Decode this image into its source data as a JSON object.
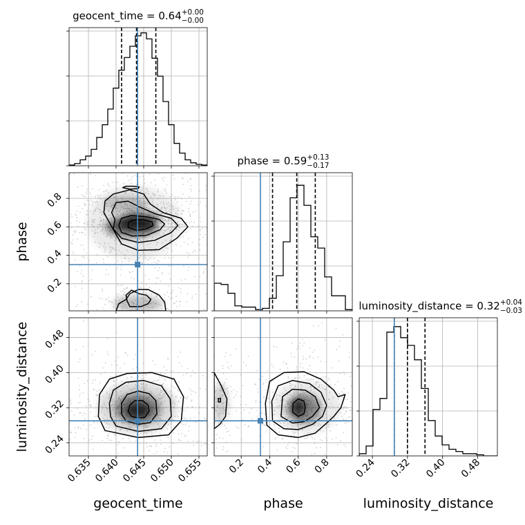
{
  "chart_data": {
    "type": "corner",
    "parameters": [
      "geocent_time",
      "phase",
      "luminosity_distance"
    ],
    "axis_labels": {
      "geocent_time": "geocent_time",
      "phase": "phase",
      "luminosity_distance": "luminosity_distance"
    },
    "titles": [
      {
        "param": "geocent_time",
        "name": "geocent_time",
        "value": "0.64",
        "plus": "+0.00",
        "minus": "−0.00"
      },
      {
        "param": "phase",
        "name": "phase",
        "value": "0.59",
        "plus": "+0.13",
        "minus": "−0.17"
      },
      {
        "param": "luminosity_distance",
        "name": "luminosity_distance",
        "value": "0.32",
        "plus": "+0.04",
        "minus": "−0.03"
      }
    ],
    "ranges": {
      "geocent_time": [
        0.6315,
        0.6565
      ],
      "phase": [
        0.01,
        0.98
      ],
      "luminosity_distance": [
        0.21,
        0.525
      ]
    },
    "ticks": {
      "geocent_time": {
        "values": [
          0.635,
          0.64,
          0.645,
          0.65,
          0.655
        ],
        "labels": [
          "0.635",
          "0.640",
          "0.645",
          "0.650",
          "0.655"
        ]
      },
      "phase": {
        "values": [
          0.2,
          0.4,
          0.6,
          0.8
        ],
        "labels": [
          "0.2",
          "0.4",
          "0.6",
          "0.8"
        ]
      },
      "luminosity_distance": {
        "values": [
          0.24,
          0.32,
          0.4,
          0.48
        ],
        "labels": [
          "0.24",
          "0.32",
          "0.40",
          "0.48"
        ]
      }
    },
    "truths": {
      "geocent_time": 0.6439,
      "phase": 0.335,
      "luminosity_distance": 0.29
    },
    "quantiles": {
      "geocent_time": [
        0.641,
        0.6437,
        0.6472
      ],
      "phase": [
        0.42,
        0.59,
        0.72
      ],
      "luminosity_distance": [
        0.29,
        0.32,
        0.36
      ]
    },
    "histograms": {
      "geocent_time": {
        "edges": [
          0.6315,
          0.6325,
          0.6335,
          0.6345,
          0.6355,
          0.6365,
          0.6375,
          0.6385,
          0.6395,
          0.6405,
          0.6415,
          0.6425,
          0.6435,
          0.6445,
          0.6455,
          0.6465,
          0.6475,
          0.6485,
          0.6495,
          0.6505,
          0.6515,
          0.6525,
          0.6535,
          0.6545,
          0.6555,
          0.6565
        ],
        "counts": [
          1,
          3,
          8,
          13,
          22,
          38,
          55,
          76,
          104,
          128,
          145,
          160,
          174,
          178,
          170,
          144,
          120,
          86,
          55,
          30,
          17,
          8,
          4,
          2,
          1
        ],
        "ymax": 185
      },
      "phase": {
        "edges": [
          0.01,
          0.0585,
          0.107,
          0.1555,
          0.204,
          0.2525,
          0.301,
          0.3495,
          0.398,
          0.4465,
          0.495,
          0.5435,
          0.592,
          0.6405,
          0.689,
          0.7375,
          0.786,
          0.8345,
          0.883,
          0.9315,
          0.98
        ],
        "counts": [
          22,
          21,
          14,
          4,
          3,
          3,
          1,
          2,
          10,
          28,
          55,
          90,
          100,
          84,
          59,
          50,
          27,
          12,
          12,
          1
        ],
        "ymax": 110
      },
      "luminosity_distance": {
        "edges": [
          0.21,
          0.22575,
          0.2415,
          0.25725,
          0.273,
          0.28875,
          0.3045,
          0.32025,
          0.336,
          0.35175,
          0.3675,
          0.38325,
          0.399,
          0.41475,
          0.4305,
          0.44625,
          0.462,
          0.47775,
          0.4935,
          0.50925,
          0.525
        ],
        "counts": [
          2,
          9,
          42,
          52,
          112,
          117,
          107,
          100,
          87,
          61,
          32,
          18,
          10,
          6,
          4,
          2,
          2,
          1,
          0,
          0
        ],
        "ymax": 125
      }
    },
    "hist_ytick_fractions": [
      0.0,
      0.325,
      0.65,
      0.975
    ],
    "density_2d": {
      "phase_vs_geocent_time": [
        {
          "x": 0.6436,
          "y": 0.62,
          "level": 0.95,
          "rx": 0.0035,
          "ry": 0.045
        },
        {
          "x": 0.6428,
          "y": 0.6,
          "level": 0.7,
          "rx": 0.0048,
          "ry": 0.075
        },
        {
          "x": 0.6446,
          "y": 0.66,
          "level": 0.6,
          "rx": 0.0035,
          "ry": 0.05
        },
        {
          "x": 0.6418,
          "y": 0.76,
          "level": 0.3,
          "rx": 0.004,
          "ry": 0.06
        },
        {
          "x": 0.644,
          "y": 0.06,
          "level": 0.35,
          "rx": 0.0045,
          "ry": 0.06
        },
        {
          "x": 0.6433,
          "y": 0.63,
          "level": 0.12,
          "rx": 0.0085,
          "ry": 0.26
        }
      ],
      "luminosity_distance_vs_geocent_time": [
        {
          "x": 0.6439,
          "y": 0.314,
          "level": 1.0,
          "rx": 0.0022,
          "ry": 0.018
        },
        {
          "x": 0.6439,
          "y": 0.318,
          "level": 0.6,
          "rx": 0.0042,
          "ry": 0.035
        },
        {
          "x": 0.6439,
          "y": 0.32,
          "level": 0.2,
          "rx": 0.0072,
          "ry": 0.06
        }
      ],
      "luminosity_distance_vs_phase": [
        {
          "x": 0.6,
          "y": 0.32,
          "level": 0.95,
          "rx": 0.05,
          "ry": 0.018
        },
        {
          "x": 0.64,
          "y": 0.318,
          "level": 0.6,
          "rx": 0.12,
          "ry": 0.035
        },
        {
          "x": 0.05,
          "y": 0.33,
          "level": 0.25,
          "rx": 0.06,
          "ry": 0.045
        },
        {
          "x": 0.66,
          "y": 0.322,
          "level": 0.12,
          "rx": 0.24,
          "ry": 0.06
        }
      ]
    },
    "contours_2d": {
      "phase_vs_geocent_time": [
        [
          [
            0.6422,
            0.595
          ],
          [
            0.6438,
            0.575
          ],
          [
            0.6454,
            0.585
          ],
          [
            0.6467,
            0.61
          ],
          [
            0.6465,
            0.635
          ],
          [
            0.645,
            0.65
          ],
          [
            0.6432,
            0.648
          ],
          [
            0.6422,
            0.63
          ]
        ],
        [
          [
            0.641,
            0.56
          ],
          [
            0.643,
            0.535
          ],
          [
            0.6455,
            0.54
          ],
          [
            0.648,
            0.58
          ],
          [
            0.6488,
            0.62
          ],
          [
            0.6478,
            0.652
          ],
          [
            0.6455,
            0.67
          ],
          [
            0.6428,
            0.68
          ],
          [
            0.641,
            0.66
          ],
          [
            0.6405,
            0.61
          ]
        ],
        [
          [
            0.6395,
            0.585
          ],
          [
            0.641,
            0.52
          ],
          [
            0.644,
            0.49
          ],
          [
            0.647,
            0.505
          ],
          [
            0.65,
            0.56
          ],
          [
            0.6512,
            0.61
          ],
          [
            0.65,
            0.66
          ],
          [
            0.6472,
            0.69
          ],
          [
            0.6442,
            0.74
          ],
          [
            0.6422,
            0.78
          ],
          [
            0.64,
            0.77
          ],
          [
            0.6392,
            0.7
          ],
          [
            0.6398,
            0.65
          ]
        ],
        [
          [
            0.6378,
            0.7
          ],
          [
            0.6398,
            0.56
          ],
          [
            0.641,
            0.48
          ],
          [
            0.644,
            0.435
          ],
          [
            0.6478,
            0.44
          ],
          [
            0.651,
            0.52
          ],
          [
            0.653,
            0.6
          ],
          [
            0.6518,
            0.66
          ],
          [
            0.6485,
            0.7
          ],
          [
            0.6462,
            0.76
          ],
          [
            0.645,
            0.83
          ],
          [
            0.6425,
            0.86
          ],
          [
            0.6395,
            0.83
          ],
          [
            0.638,
            0.78
          ]
        ],
        [
          [
            0.6412,
            0.875
          ],
          [
            0.6425,
            0.865
          ],
          [
            0.644,
            0.868
          ],
          [
            0.6442,
            0.88
          ],
          [
            0.6432,
            0.885
          ],
          [
            0.6418,
            0.885
          ]
        ],
        [
          [
            0.6428,
            0.155
          ],
          [
            0.6442,
            0.13
          ],
          [
            0.6455,
            0.12
          ],
          [
            0.6463,
            0.09
          ],
          [
            0.6458,
            0.06
          ],
          [
            0.6445,
            0.04
          ],
          [
            0.6425,
            0.04
          ],
          [
            0.642,
            0.08
          ],
          [
            0.6418,
            0.12
          ]
        ],
        [
          [
            0.64,
            0.01
          ],
          [
            0.6405,
            0.06
          ],
          [
            0.6418,
            0.09
          ],
          [
            0.6425,
            0.13
          ],
          [
            0.644,
            0.16
          ],
          [
            0.6458,
            0.16
          ],
          [
            0.6478,
            0.12
          ],
          [
            0.6488,
            0.07
          ],
          [
            0.649,
            0.01
          ]
        ]
      ],
      "luminosity_distance_vs_geocent_time": [
        [
          [
            0.6428,
            0.3
          ],
          [
            0.644,
            0.296
          ],
          [
            0.6452,
            0.298
          ],
          [
            0.646,
            0.312
          ],
          [
            0.6458,
            0.326
          ],
          [
            0.6448,
            0.336
          ],
          [
            0.6434,
            0.336
          ],
          [
            0.6425,
            0.326
          ],
          [
            0.6422,
            0.312
          ]
        ],
        [
          [
            0.6418,
            0.29
          ],
          [
            0.644,
            0.282
          ],
          [
            0.6462,
            0.286
          ],
          [
            0.6474,
            0.306
          ],
          [
            0.6472,
            0.336
          ],
          [
            0.646,
            0.352
          ],
          [
            0.644,
            0.358
          ],
          [
            0.642,
            0.35
          ],
          [
            0.641,
            0.33
          ],
          [
            0.641,
            0.305
          ]
        ],
        [
          [
            0.64,
            0.278
          ],
          [
            0.644,
            0.266
          ],
          [
            0.6482,
            0.272
          ],
          [
            0.65,
            0.3
          ],
          [
            0.6498,
            0.34
          ],
          [
            0.6482,
            0.37
          ],
          [
            0.645,
            0.382
          ],
          [
            0.6418,
            0.378
          ],
          [
            0.6395,
            0.36
          ],
          [
            0.6388,
            0.33
          ],
          [
            0.639,
            0.3
          ]
        ],
        [
          [
            0.638,
            0.268
          ],
          [
            0.644,
            0.252
          ],
          [
            0.6495,
            0.258
          ],
          [
            0.6518,
            0.29
          ],
          [
            0.6522,
            0.345
          ],
          [
            0.6505,
            0.385
          ],
          [
            0.6465,
            0.4
          ],
          [
            0.642,
            0.398
          ],
          [
            0.6388,
            0.385
          ],
          [
            0.637,
            0.35
          ],
          [
            0.6368,
            0.3
          ]
        ]
      ],
      "luminosity_distance_vs_phase": [
        [
          [
            0.56,
            0.31
          ],
          [
            0.6,
            0.3
          ],
          [
            0.64,
            0.306
          ],
          [
            0.65,
            0.32
          ],
          [
            0.64,
            0.335
          ],
          [
            0.6,
            0.34
          ],
          [
            0.565,
            0.33
          ]
        ],
        [
          [
            0.48,
            0.3
          ],
          [
            0.56,
            0.285
          ],
          [
            0.64,
            0.288
          ],
          [
            0.7,
            0.3
          ],
          [
            0.75,
            0.32
          ],
          [
            0.72,
            0.345
          ],
          [
            0.65,
            0.36
          ],
          [
            0.56,
            0.362
          ],
          [
            0.49,
            0.345
          ]
        ],
        [
          [
            0.42,
            0.29
          ],
          [
            0.5,
            0.272
          ],
          [
            0.6,
            0.27
          ],
          [
            0.7,
            0.282
          ],
          [
            0.77,
            0.3
          ],
          [
            0.8,
            0.325
          ],
          [
            0.76,
            0.355
          ],
          [
            0.68,
            0.375
          ],
          [
            0.56,
            0.382
          ],
          [
            0.46,
            0.37
          ],
          [
            0.415,
            0.335
          ]
        ],
        [
          [
            0.38,
            0.28
          ],
          [
            0.46,
            0.258
          ],
          [
            0.6,
            0.252
          ],
          [
            0.72,
            0.262
          ],
          [
            0.8,
            0.285
          ],
          [
            0.85,
            0.3
          ],
          [
            0.9,
            0.32
          ],
          [
            0.93,
            0.35
          ],
          [
            0.88,
            0.345
          ],
          [
            0.85,
            0.36
          ],
          [
            0.76,
            0.385
          ],
          [
            0.64,
            0.402
          ],
          [
            0.5,
            0.4
          ],
          [
            0.4,
            0.38
          ],
          [
            0.37,
            0.33
          ]
        ],
        [
          [
            0.01,
            0.4
          ],
          [
            0.06,
            0.37
          ],
          [
            0.1,
            0.34
          ],
          [
            0.09,
            0.3
          ],
          [
            0.05,
            0.282
          ],
          [
            0.01,
            0.272
          ]
        ],
        [
          [
            0.04,
            0.333
          ],
          [
            0.055,
            0.333
          ],
          [
            0.055,
            0.341
          ],
          [
            0.04,
            0.341
          ]
        ]
      ]
    },
    "colors": {
      "truth": "#4682b4",
      "line": "#000000",
      "grid": "#b0b0b0",
      "scatter": "#9a9a9a"
    }
  }
}
